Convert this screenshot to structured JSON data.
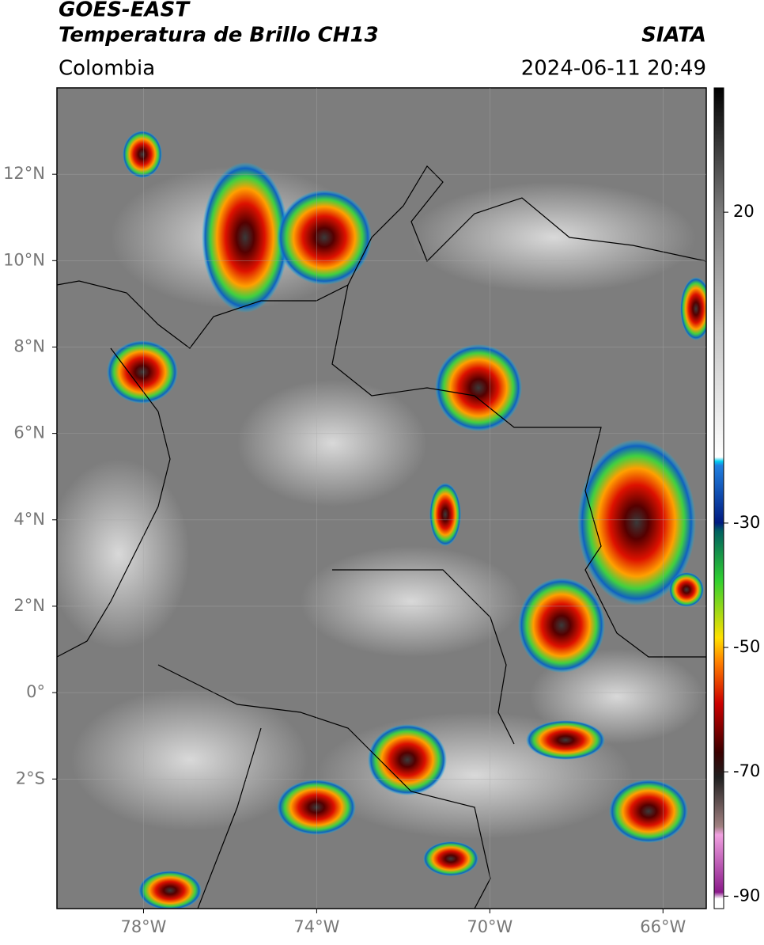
{
  "header": {
    "title": "GOES-EAST",
    "subtitle": "Temperatura de Brillo CH13",
    "source": "SIATA",
    "region": "Colombia",
    "datetime": "2024-06-11 20:49"
  },
  "map": {
    "lonlim": [
      -80,
      -65
    ],
    "latlim": [
      -5,
      14
    ],
    "lonticks": [
      {
        "value": -78,
        "label": "78°W"
      },
      {
        "value": -74,
        "label": "74°W"
      },
      {
        "value": -70,
        "label": "70°W"
      },
      {
        "value": -66,
        "label": "66°W"
      }
    ],
    "latticks": [
      {
        "value": 12,
        "label": "12°N"
      },
      {
        "value": 10,
        "label": "10°N"
      },
      {
        "value": 8,
        "label": "8°N"
      },
      {
        "value": 6,
        "label": "6°N"
      },
      {
        "value": 4,
        "label": "4°N"
      },
      {
        "value": 2,
        "label": "2°N"
      },
      {
        "value": 0,
        "label": "0°"
      },
      {
        "value": -2,
        "label": "2°S"
      }
    ],
    "grid": true
  },
  "colorbar": {
    "range": [
      -92,
      40
    ],
    "ticks": [
      20,
      -30,
      -50,
      -70,
      -90
    ]
  }
}
